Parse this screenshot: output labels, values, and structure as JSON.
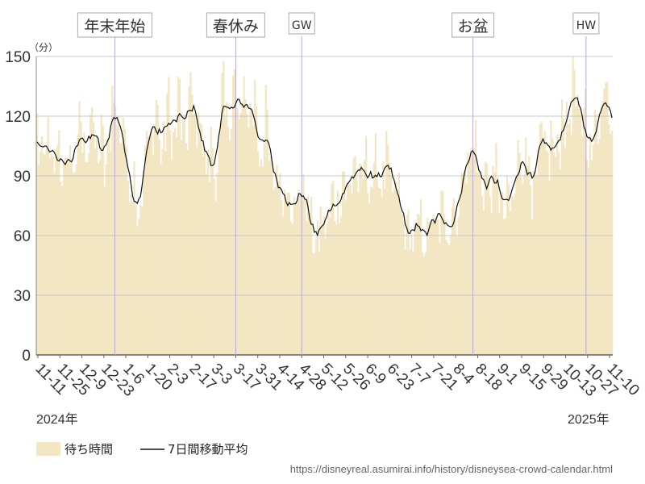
{
  "chart_data": {
    "type": "bar",
    "unit_label": "（分）",
    "ylim": [
      0,
      150
    ],
    "y_ticks": [
      "0",
      "30",
      "60",
      "90",
      "120",
      "150"
    ],
    "grid": true,
    "start_date": "2024-11-10",
    "end_date": "2025-11-12",
    "x_tick_labels": [
      "11-11",
      "11-25",
      "12-9",
      "12-23",
      "1-6",
      "1-20",
      "2-3",
      "2-17",
      "3-3",
      "3-17",
      "3-31",
      "4-14",
      "4-28",
      "5-12",
      "5-26",
      "6-9",
      "6-23",
      "7-7",
      "7-21",
      "8-4",
      "8-18",
      "9-1",
      "9-15",
      "9-29",
      "10-13",
      "10-27",
      "11-10"
    ],
    "x_tick_dates": [
      "2024-11-11",
      "2024-11-25",
      "2024-12-09",
      "2024-12-23",
      "2025-01-06",
      "2025-01-20",
      "2025-02-03",
      "2025-02-17",
      "2025-03-03",
      "2025-03-17",
      "2025-03-31",
      "2025-04-14",
      "2025-04-28",
      "2025-05-12",
      "2025-05-26",
      "2025-06-09",
      "2025-06-23",
      "2025-07-07",
      "2025-07-21",
      "2025-08-04",
      "2025-08-18",
      "2025-09-01",
      "2025-09-15",
      "2025-09-29",
      "2025-10-13",
      "2025-10-27",
      "2025-11-10"
    ],
    "year_labels": [
      "2024年",
      "2025年"
    ],
    "events": [
      {
        "label": "年末年始",
        "date": "2024-12-30"
      },
      {
        "label": "春休み",
        "date": "2025-03-17"
      },
      {
        "label": "GW",
        "date": "2025-04-28"
      },
      {
        "label": "お盆",
        "date": "2025-08-15"
      },
      {
        "label": "HW",
        "date": "2025-10-26"
      }
    ],
    "legend": {
      "bar_label": "待ち時間",
      "line_label": "7日間移動平均",
      "placement": "bottom-left"
    },
    "series": [
      {
        "name": "待ち時間",
        "type": "bar",
        "color": "#f3e6c3",
        "anchors": [
          [
            "2024-11-10",
            104
          ],
          [
            "2024-11-14",
            100
          ],
          [
            "2024-11-19",
            96
          ],
          [
            "2024-11-23",
            100
          ],
          [
            "2024-11-27",
            93
          ],
          [
            "2024-12-01",
            94
          ],
          [
            "2024-12-06",
            104
          ],
          [
            "2024-12-11",
            108
          ],
          [
            "2024-12-15",
            110
          ],
          [
            "2024-12-19",
            106
          ],
          [
            "2024-12-23",
            92
          ],
          [
            "2024-12-27",
            115
          ],
          [
            "2024-12-30",
            124
          ],
          [
            "2025-01-03",
            113
          ],
          [
            "2025-01-07",
            92
          ],
          [
            "2025-01-10",
            88
          ],
          [
            "2025-01-13",
            72
          ],
          [
            "2025-01-17",
            88
          ],
          [
            "2025-01-21",
            110
          ],
          [
            "2025-01-24",
            118
          ],
          [
            "2025-01-28",
            104
          ],
          [
            "2025-02-01",
            116
          ],
          [
            "2025-02-05",
            112
          ],
          [
            "2025-02-09",
            119
          ],
          [
            "2025-02-13",
            110
          ],
          [
            "2025-02-17",
            126
          ],
          [
            "2025-02-22",
            112
          ],
          [
            "2025-02-25",
            100
          ],
          [
            "2025-03-01",
            95
          ],
          [
            "2025-03-04",
            92
          ],
          [
            "2025-03-08",
            119
          ],
          [
            "2025-03-12",
            123
          ],
          [
            "2025-03-17",
            124
          ],
          [
            "2025-03-22",
            120
          ],
          [
            "2025-03-27",
            128
          ],
          [
            "2025-04-01",
            104
          ],
          [
            "2025-04-05",
            110
          ],
          [
            "2025-04-08",
            95
          ],
          [
            "2025-04-12",
            85
          ],
          [
            "2025-04-16",
            84
          ],
          [
            "2025-04-20",
            80
          ],
          [
            "2025-04-24",
            74
          ],
          [
            "2025-04-27",
            78
          ],
          [
            "2025-04-30",
            86
          ],
          [
            "2025-05-04",
            60
          ],
          [
            "2025-05-08",
            58
          ],
          [
            "2025-05-12",
            64
          ],
          [
            "2025-05-17",
            72
          ],
          [
            "2025-05-22",
            80
          ],
          [
            "2025-05-27",
            84
          ],
          [
            "2025-06-01",
            90
          ],
          [
            "2025-06-05",
            88
          ],
          [
            "2025-06-10",
            90
          ],
          [
            "2025-06-15",
            88
          ],
          [
            "2025-06-20",
            91
          ],
          [
            "2025-06-25",
            85
          ],
          [
            "2025-07-01",
            70
          ],
          [
            "2025-07-06",
            57
          ],
          [
            "2025-07-11",
            62
          ],
          [
            "2025-07-16",
            60
          ],
          [
            "2025-07-21",
            64
          ],
          [
            "2025-07-26",
            66
          ],
          [
            "2025-07-31",
            67
          ],
          [
            "2025-08-05",
            72
          ],
          [
            "2025-08-10",
            92
          ],
          [
            "2025-08-14",
            104
          ],
          [
            "2025-08-18",
            96
          ],
          [
            "2025-08-22",
            84
          ],
          [
            "2025-08-26",
            84
          ],
          [
            "2025-08-30",
            88
          ],
          [
            "2025-09-03",
            74
          ],
          [
            "2025-09-06",
            70
          ],
          [
            "2025-09-10",
            80
          ],
          [
            "2025-09-15",
            98
          ],
          [
            "2025-09-18",
            104
          ],
          [
            "2025-09-22",
            80
          ],
          [
            "2025-09-26",
            94
          ],
          [
            "2025-09-30",
            104
          ],
          [
            "2025-10-04",
            98
          ],
          [
            "2025-10-08",
            104
          ],
          [
            "2025-10-11",
            110
          ],
          [
            "2025-10-15",
            122
          ],
          [
            "2025-10-19",
            128
          ],
          [
            "2025-10-23",
            118
          ],
          [
            "2025-10-27",
            112
          ],
          [
            "2025-10-31",
            100
          ],
          [
            "2025-11-03",
            118
          ],
          [
            "2025-11-07",
            134
          ],
          [
            "2025-11-09",
            126
          ],
          [
            "2025-11-12",
            124
          ]
        ]
      },
      {
        "name": "7日間移動平均",
        "type": "line",
        "color": "#111111"
      }
    ]
  },
  "source": "https://disneyreal.asumirai.info/history/disneysea-crowd-calendar.html"
}
